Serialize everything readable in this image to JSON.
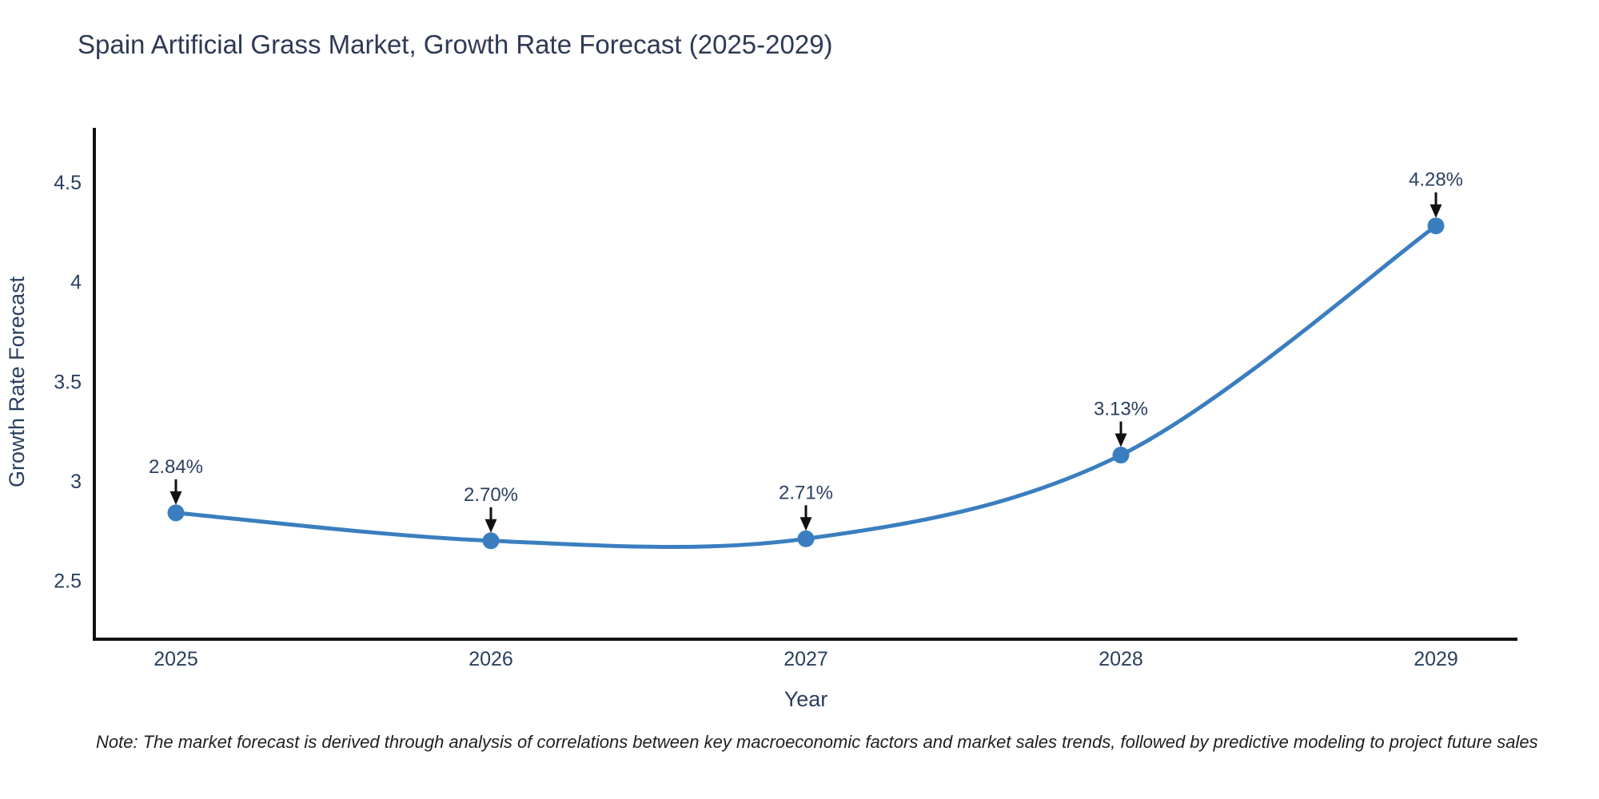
{
  "page": {
    "background": "#ffffff"
  },
  "note": "Note: The market forecast is derived through analysis of correlations between key macroeconomic factors and market sales trends, followed by predictive modeling to project future sales",
  "chart_data": {
    "type": "line",
    "title": "Spain Artificial Grass Market, Growth Rate Forecast (2025-2029)",
    "xlabel": "Year",
    "ylabel": "Growth Rate Forecast",
    "categories": [
      "2025",
      "2026",
      "2027",
      "2028",
      "2029"
    ],
    "values": [
      2.84,
      2.7,
      2.71,
      3.13,
      4.28
    ],
    "point_labels": [
      "2.84%",
      "2.70%",
      "2.71%",
      "3.13%",
      "4.28%"
    ],
    "ytick_values": [
      2.5,
      3.0,
      3.5,
      4.0,
      4.5
    ],
    "ytick_labels": [
      "2.5",
      "3",
      "3.5",
      "4",
      "4.5"
    ],
    "ylim": [
      2.206,
      4.772
    ],
    "grid": false,
    "legend_position": "none",
    "line_shape": "spline",
    "colors": {
      "line": "#3a7ebf",
      "marker": "#3a7ebf",
      "axis": "#111111",
      "tick_text": "#2a3f5f",
      "title_text": "#2e3a54",
      "annotation_arrow": "#111111",
      "annotation_text": "#2a3f5f"
    }
  }
}
